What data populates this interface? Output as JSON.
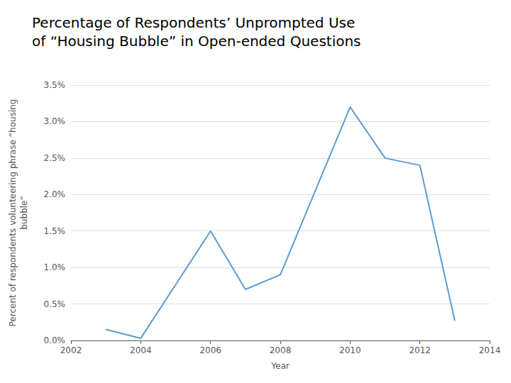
{
  "chart_data": {
    "type": "line",
    "title": "Percentage of Respondents’ Unprompted Use\nof “Housing Bubble” in Open-ended Questions",
    "xlabel": "Year",
    "ylabel": "Percent of respondents volunteering phrase “housing\nbubble”",
    "x": [
      2003,
      2004,
      2006,
      2007,
      2008,
      2010,
      2011,
      2012,
      2013
    ],
    "values": [
      0.0015,
      0.0003,
      0.015,
      0.007,
      0.009,
      0.032,
      0.025,
      0.024,
      0.0027
    ],
    "color": "#5b9bd5",
    "xlim": [
      2002,
      2014
    ],
    "xticks": [
      2002,
      2004,
      2006,
      2008,
      2010,
      2012,
      2014
    ],
    "ylim": [
      0,
      0.035
    ],
    "yticks": [
      {
        "value": 0.0,
        "label": "0.0%"
      },
      {
        "value": 0.005,
        "label": "0.5%"
      },
      {
        "value": 0.01,
        "label": "1.0%"
      },
      {
        "value": 0.015,
        "label": "1.5%"
      },
      {
        "value": 0.02,
        "label": "2.0%"
      },
      {
        "value": 0.025,
        "label": "2.5%"
      },
      {
        "value": 0.03,
        "label": "3.0%"
      },
      {
        "value": 0.035,
        "label": "3.5%"
      }
    ],
    "grid": true
  }
}
